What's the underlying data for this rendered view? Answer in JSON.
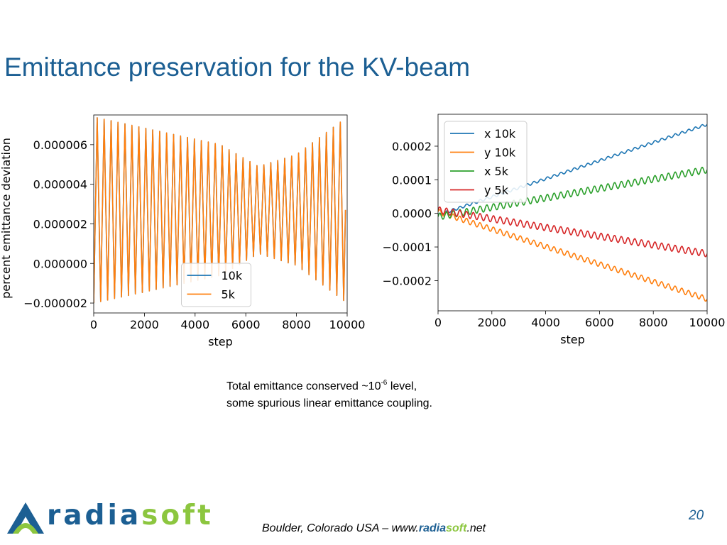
{
  "slide": {
    "title": "Emittance preservation for the KV-beam",
    "caption_line1_pre": "Total emittance conserved ~10",
    "caption_sup": "-6",
    "caption_line1_post": " level,",
    "caption_line2": "some spurious linear emittance coupling.",
    "logo": {
      "radia": "radia",
      "soft": "soft"
    },
    "footer": {
      "pre": "Boulder, Colorado  USA  –  www.",
      "radia": "radia",
      "soft": "soft",
      "post": ".net"
    },
    "page_number": "20"
  },
  "chart_data": [
    {
      "type": "line",
      "xlabel": "step",
      "ylabel": "percent emittance deviation",
      "xlim": [
        0,
        10000
      ],
      "ylim": [
        -2.5e-06,
        7.5e-06
      ],
      "xticks": [
        0,
        2000,
        4000,
        6000,
        8000,
        10000
      ],
      "xtick_labels": [
        "0",
        "2000",
        "4000",
        "6000",
        "8000",
        "10000"
      ],
      "yticks": [
        -2e-06,
        0.0,
        2e-06,
        4e-06,
        6e-06
      ],
      "ytick_labels": [
        "−0.000002",
        "0.000000",
        "0.000002",
        "0.000004",
        "0.000006"
      ],
      "legend_position": "lower-center",
      "grid": false,
      "series": [
        {
          "name": "10k",
          "color": "#1f77b4",
          "period": 274,
          "baseline": 2.7e-06,
          "amplitude_profile": [
            [
              0,
              4.7e-06
            ],
            [
              5000,
              3.3e-06
            ],
            [
              6500,
              2.2e-06
            ],
            [
              8000,
              2.8e-06
            ],
            [
              10000,
              4.7e-06
            ]
          ]
        },
        {
          "name": "5k",
          "color": "#ff7f0e",
          "period": 274,
          "baseline": 2.7e-06,
          "amplitude_profile": [
            [
              0,
              4.7e-06
            ],
            [
              5000,
              3.3e-06
            ],
            [
              6500,
              2.2e-06
            ],
            [
              8000,
              2.8e-06
            ],
            [
              10000,
              4.7e-06
            ]
          ]
        }
      ]
    },
    {
      "type": "line",
      "xlabel": "step",
      "ylabel": "",
      "xlim": [
        0,
        10000
      ],
      "ylim": [
        -0.00029,
        0.000295
      ],
      "xticks": [
        0,
        2000,
        4000,
        6000,
        8000,
        10000
      ],
      "xtick_labels": [
        "0",
        "2000",
        "4000",
        "6000",
        "8000",
        "10000"
      ],
      "yticks": [
        -0.0002,
        -0.0001,
        0.0,
        0.0001,
        0.0002
      ],
      "ytick_labels": [
        "−0.0002",
        "−0.0001",
        "0.0000",
        "0.0001",
        "0.0002"
      ],
      "legend_position": "upper-left",
      "grid": false,
      "series": [
        {
          "name": "x 10k",
          "color": "#1f77b4",
          "start": -5e-06,
          "end": 0.000265,
          "ripple": 4e-06,
          "period": 250
        },
        {
          "name": "y 10k",
          "color": "#ff7f0e",
          "start": 5e-06,
          "end": -0.000255,
          "ripple": 8e-06,
          "period": 250
        },
        {
          "name": "x 5k",
          "color": "#2ca02c",
          "start": -1e-05,
          "end": 0.00013,
          "ripple": 1e-05,
          "period": 250
        },
        {
          "name": "y 5k",
          "color": "#d62728",
          "start": 1e-05,
          "end": -0.00012,
          "ripple": 1e-05,
          "period": 250
        }
      ]
    }
  ]
}
